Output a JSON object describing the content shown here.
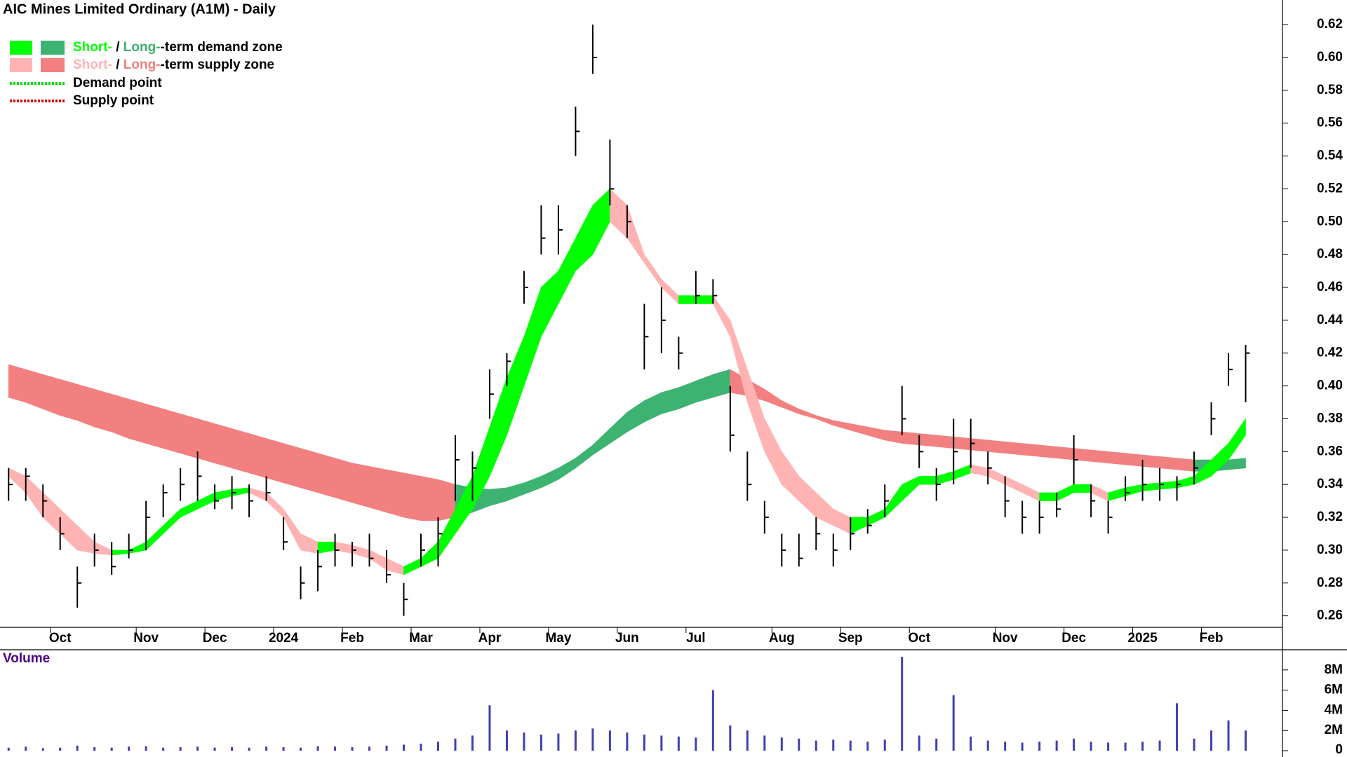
{
  "chart_data": {
    "type": "ohlc",
    "title": "AIC Mines Limited Ordinary (A1M) - Daily",
    "categories": [
      null,
      null,
      null,
      "Oct",
      null,
      null,
      null,
      null,
      "Nov",
      null,
      null,
      null,
      "Dec",
      null,
      null,
      null,
      "2024",
      null,
      null,
      null,
      "Feb",
      null,
      null,
      null,
      "Mar",
      null,
      null,
      null,
      "Apr",
      null,
      null,
      null,
      "May",
      null,
      null,
      null,
      "Jun",
      null,
      null,
      null,
      "Jul",
      null,
      null,
      null,
      null,
      "Aug",
      null,
      null,
      null,
      "Sep",
      null,
      null,
      null,
      "Oct",
      null,
      null,
      null,
      null,
      "Nov",
      null,
      null,
      null,
      "Dec",
      null,
      null,
      null,
      "2025",
      null,
      null,
      null,
      "Feb",
      null,
      null
    ],
    "high": [
      0.35,
      0.35,
      0.34,
      0.32,
      0.29,
      0.31,
      0.305,
      0.31,
      0.33,
      0.34,
      0.35,
      0.36,
      0.34,
      0.345,
      0.34,
      0.345,
      0.32,
      0.29,
      0.3,
      0.31,
      0.305,
      0.31,
      0.3,
      0.28,
      0.31,
      0.32,
      0.37,
      0.36,
      0.41,
      0.42,
      0.47,
      0.51,
      0.51,
      0.57,
      0.62,
      0.55,
      0.51,
      0.45,
      0.46,
      0.43,
      0.47,
      0.465,
      0.4,
      0.36,
      0.33,
      0.31,
      0.31,
      0.32,
      0.31,
      0.32,
      0.325,
      0.34,
      0.4,
      0.37,
      0.35,
      0.38,
      0.38,
      0.36,
      0.345,
      0.33,
      0.33,
      0.335,
      0.37,
      0.34,
      0.33,
      0.345,
      0.355,
      0.35,
      0.345,
      0.36,
      0.39,
      0.42,
      0.425
    ],
    "low": [
      0.33,
      0.33,
      0.32,
      0.3,
      0.265,
      0.29,
      0.285,
      0.295,
      0.3,
      0.32,
      0.33,
      0.33,
      0.325,
      0.325,
      0.32,
      0.33,
      0.3,
      0.27,
      0.275,
      0.29,
      0.29,
      0.29,
      0.28,
      0.26,
      0.29,
      0.29,
      0.33,
      0.33,
      0.38,
      0.4,
      0.45,
      0.48,
      0.48,
      0.54,
      0.59,
      0.51,
      0.49,
      0.41,
      0.42,
      0.41,
      0.45,
      0.45,
      0.36,
      0.33,
      0.31,
      0.29,
      0.29,
      0.3,
      0.29,
      0.3,
      0.31,
      0.32,
      0.37,
      0.35,
      0.33,
      0.34,
      0.35,
      0.34,
      0.32,
      0.31,
      0.31,
      0.32,
      0.34,
      0.32,
      0.31,
      0.33,
      0.33,
      0.33,
      0.33,
      0.34,
      0.37,
      0.4,
      0.39
    ],
    "close": [
      0.34,
      0.345,
      0.33,
      0.31,
      0.28,
      0.3,
      0.29,
      0.3,
      0.32,
      0.335,
      0.34,
      0.345,
      0.33,
      0.335,
      0.33,
      0.335,
      0.305,
      0.28,
      0.29,
      0.3,
      0.3,
      0.295,
      0.285,
      0.27,
      0.3,
      0.31,
      0.355,
      0.35,
      0.395,
      0.415,
      0.46,
      0.49,
      0.495,
      0.555,
      0.6,
      0.52,
      0.5,
      0.43,
      0.44,
      0.42,
      0.455,
      0.455,
      0.37,
      0.34,
      0.32,
      0.3,
      0.295,
      0.31,
      0.3,
      0.31,
      0.315,
      0.33,
      0.38,
      0.36,
      0.34,
      0.36,
      0.365,
      0.35,
      0.33,
      0.32,
      0.32,
      0.325,
      0.355,
      0.33,
      0.32,
      0.335,
      0.34,
      0.34,
      0.34,
      0.35,
      0.38,
      0.41,
      0.42
    ],
    "bar_color": "#000000",
    "short_term_zone": {
      "demand_color": "#00ff00",
      "supply_color": "#ffb3b3",
      "upper": [
        0.35,
        0.345,
        0.335,
        0.325,
        0.315,
        0.305,
        0.3,
        0.3,
        0.305,
        0.315,
        0.325,
        0.33,
        0.335,
        0.337,
        0.338,
        0.335,
        0.325,
        0.31,
        0.305,
        0.305,
        0.303,
        0.3,
        0.295,
        0.29,
        0.295,
        0.305,
        0.325,
        0.345,
        0.375,
        0.405,
        0.43,
        0.46,
        0.47,
        0.49,
        0.51,
        0.52,
        0.51,
        0.48,
        0.465,
        0.455,
        0.455,
        0.455,
        0.44,
        0.41,
        0.38,
        0.36,
        0.345,
        0.335,
        0.325,
        0.32,
        0.32,
        0.325,
        0.34,
        0.345,
        0.345,
        0.348,
        0.352,
        0.35,
        0.345,
        0.34,
        0.335,
        0.335,
        0.34,
        0.34,
        0.335,
        0.338,
        0.34,
        0.341,
        0.342,
        0.345,
        0.355,
        0.365,
        0.38
      ],
      "lower": [
        0.345,
        0.335,
        0.32,
        0.31,
        0.3,
        0.298,
        0.297,
        0.298,
        0.3,
        0.31,
        0.32,
        0.325,
        0.33,
        0.333,
        0.335,
        0.33,
        0.32,
        0.3,
        0.298,
        0.3,
        0.298,
        0.295,
        0.288,
        0.285,
        0.29,
        0.295,
        0.31,
        0.325,
        0.345,
        0.37,
        0.4,
        0.43,
        0.45,
        0.47,
        0.48,
        0.5,
        0.49,
        0.475,
        0.46,
        0.45,
        0.45,
        0.45,
        0.43,
        0.39,
        0.36,
        0.34,
        0.33,
        0.32,
        0.315,
        0.31,
        0.315,
        0.32,
        0.33,
        0.34,
        0.34,
        0.343,
        0.347,
        0.345,
        0.34,
        0.335,
        0.33,
        0.33,
        0.335,
        0.335,
        0.33,
        0.333,
        0.336,
        0.337,
        0.338,
        0.34,
        0.345,
        0.355,
        0.37
      ]
    },
    "long_term_zone": {
      "demand_color": "#3cb371",
      "supply_color": "#f28080",
      "upper": [
        0.413,
        0.41,
        0.407,
        0.404,
        0.401,
        0.398,
        0.395,
        0.392,
        0.389,
        0.386,
        0.383,
        0.38,
        0.377,
        0.374,
        0.371,
        0.368,
        0.365,
        0.362,
        0.359,
        0.356,
        0.353,
        0.351,
        0.349,
        0.347,
        0.345,
        0.343,
        0.34,
        0.338,
        0.337,
        0.338,
        0.341,
        0.345,
        0.35,
        0.356,
        0.364,
        0.374,
        0.384,
        0.391,
        0.396,
        0.399,
        0.403,
        0.407,
        0.41,
        0.404,
        0.398,
        0.391,
        0.386,
        0.382,
        0.379,
        0.377,
        0.375,
        0.373,
        0.372,
        0.371,
        0.37,
        0.369,
        0.368,
        0.367,
        0.366,
        0.365,
        0.364,
        0.363,
        0.362,
        0.361,
        0.36,
        0.359,
        0.358,
        0.357,
        0.356,
        0.355,
        0.355,
        0.355,
        0.356
      ],
      "lower": [
        0.393,
        0.39,
        0.386,
        0.382,
        0.379,
        0.375,
        0.372,
        0.368,
        0.365,
        0.362,
        0.359,
        0.356,
        0.353,
        0.35,
        0.347,
        0.344,
        0.341,
        0.338,
        0.335,
        0.332,
        0.329,
        0.326,
        0.323,
        0.32,
        0.318,
        0.318,
        0.32,
        0.323,
        0.327,
        0.33,
        0.334,
        0.338,
        0.343,
        0.35,
        0.358,
        0.365,
        0.372,
        0.378,
        0.383,
        0.386,
        0.39,
        0.393,
        0.396,
        0.394,
        0.391,
        0.387,
        0.383,
        0.38,
        0.376,
        0.373,
        0.37,
        0.367,
        0.365,
        0.364,
        0.363,
        0.362,
        0.361,
        0.36,
        0.359,
        0.358,
        0.357,
        0.356,
        0.355,
        0.354,
        0.353,
        0.352,
        0.351,
        0.35,
        0.349,
        0.348,
        0.348,
        0.349,
        0.35
      ]
    },
    "ylim": [
      0.253,
      0.635
    ],
    "yticks": [
      0.26,
      0.28,
      {
        "value": 0.3,
        "label": "0.30"
      },
      0.32,
      0.34,
      0.36,
      0.38,
      {
        "value": 0.4,
        "label": "0.40"
      },
      0.42,
      0.44,
      0.46,
      0.48,
      {
        "value": 0.5,
        "label": "0.50"
      },
      0.52,
      0.54,
      0.56,
      0.58,
      {
        "value": 0.6,
        "label": "0.60"
      },
      0.62
    ],
    "legend": {
      "zones": [
        {
          "short": "Short-",
          "separator": " / ",
          "long": "Long-",
          "text": "-term demand zone",
          "kind": "demand"
        },
        {
          "short": "Short-",
          "separator": " / ",
          "long": "Long-",
          "text": "-term supply zone",
          "kind": "supply"
        }
      ],
      "points": [
        {
          "text": "Demand point",
          "color": "#00dd00"
        },
        {
          "text": "Supply point",
          "color": "#dd0000"
        }
      ]
    },
    "volume": {
      "title": "Volume",
      "color": "#4040b0",
      "values": [
        300000,
        400000,
        250000,
        300000,
        500000,
        350000,
        300000,
        400000,
        450000,
        300000,
        350000,
        400000,
        300000,
        350000,
        300000,
        400000,
        350000,
        300000,
        450000,
        400000,
        350000,
        400000,
        500000,
        600000,
        700000,
        900000,
        1200000,
        1500000,
        4500000,
        2000000,
        1800000,
        1600000,
        1700000,
        2000000,
        2200000,
        2000000,
        1800000,
        1600000,
        1500000,
        1400000,
        1300000,
        6000000,
        2500000,
        2000000,
        1500000,
        1300000,
        1200000,
        1000000,
        1100000,
        1000000,
        900000,
        1100000,
        9300000,
        1500000,
        1200000,
        5500000,
        1400000,
        1000000,
        900000,
        800000,
        900000,
        1000000,
        1200000,
        900000,
        800000,
        800000,
        900000,
        1000000,
        4700000,
        1200000,
        2000000,
        3000000,
        2000000
      ],
      "ylim": [
        0,
        10000000
      ],
      "yticks": [
        0,
        {
          "value": 2000000,
          "label": "2M"
        },
        {
          "value": 4000000,
          "label": "4M"
        },
        {
          "value": 6000000,
          "label": "6M"
        },
        {
          "value": 8000000,
          "label": "8M"
        }
      ]
    }
  }
}
